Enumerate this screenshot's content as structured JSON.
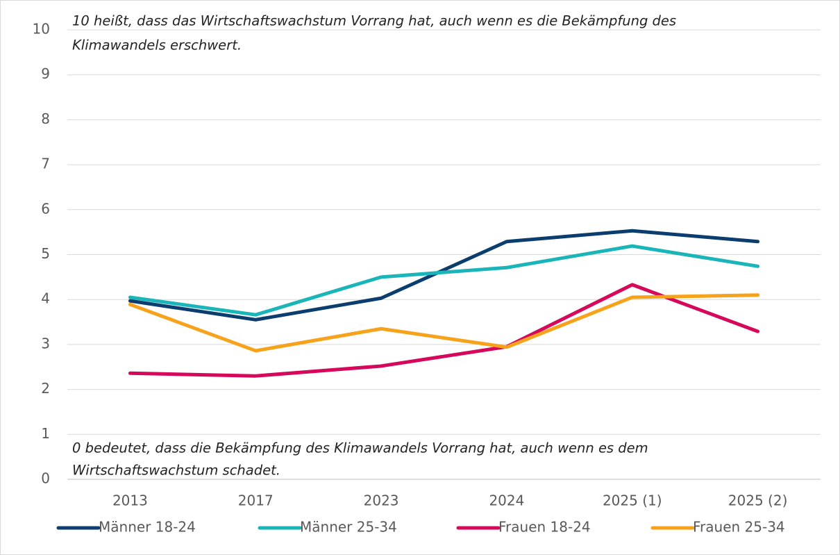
{
  "chart_data": {
    "type": "line",
    "annotations": [
      [
        "10 heißt, dass das Wirtschaftswachstum Vorrang hat, auch wenn es die Bekämpfung des",
        "Klimawandels erschwert."
      ],
      [
        "0 bedeutet, dass die Bekämpfung des Klimawandels Vorrang hat, auch wenn es dem",
        "Wirtschaftswachstum schadet."
      ]
    ],
    "categories": [
      "2013",
      "2017",
      "2023",
      "2024",
      "2025 (1)",
      "2025 (2)"
    ],
    "series": [
      {
        "name": "Männer 18-24",
        "color": "#0b3d6e",
        "values": [
          3.97,
          3.55,
          4.03,
          5.29,
          5.53,
          5.29
        ]
      },
      {
        "name": "Männer 25-34",
        "color": "#1ab5b8",
        "values": [
          4.05,
          3.66,
          4.5,
          4.71,
          5.19,
          4.74
        ]
      },
      {
        "name": "Frauen 18-24",
        "color": "#d6085b",
        "values": [
          2.36,
          2.3,
          2.52,
          2.95,
          4.33,
          3.29
        ]
      },
      {
        "name": "Frauen 25-34",
        "color": "#f7a21b",
        "values": [
          3.89,
          2.86,
          3.35,
          2.94,
          4.05,
          4.1
        ]
      }
    ],
    "ylim": [
      0,
      10
    ],
    "yticks": [
      0,
      1,
      2,
      3,
      4,
      5,
      6,
      7,
      8,
      9,
      10
    ],
    "grid": true,
    "legend": "bottom"
  }
}
